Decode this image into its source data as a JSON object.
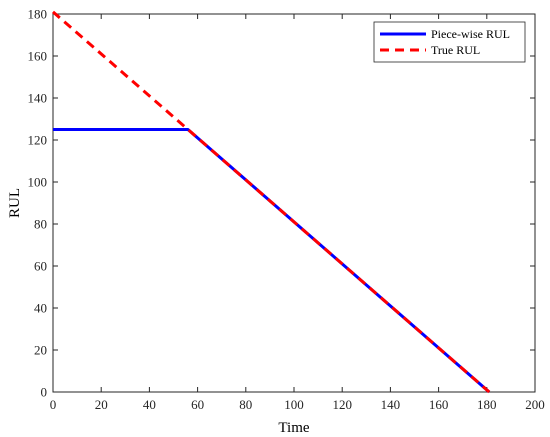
{
  "chart_data": {
    "type": "line",
    "xlabel": "Time",
    "ylabel": "RUL",
    "xlim": [
      0,
      200
    ],
    "ylim": [
      0,
      180
    ],
    "xticks": [
      0,
      20,
      40,
      60,
      80,
      100,
      120,
      140,
      160,
      180,
      200
    ],
    "yticks": [
      0,
      20,
      40,
      60,
      80,
      100,
      120,
      140,
      160,
      180
    ],
    "grid": false,
    "legend_position": "top-right",
    "series": [
      {
        "name": "Piece-wise RUL",
        "color": "#0000ff",
        "style": "solid",
        "x": [
          0,
          56,
          181
        ],
        "y": [
          125,
          125,
          0
        ]
      },
      {
        "name": "True RUL",
        "color": "#ff0000",
        "style": "dashed",
        "x": [
          0,
          181
        ],
        "y": [
          181,
          0
        ]
      }
    ]
  }
}
